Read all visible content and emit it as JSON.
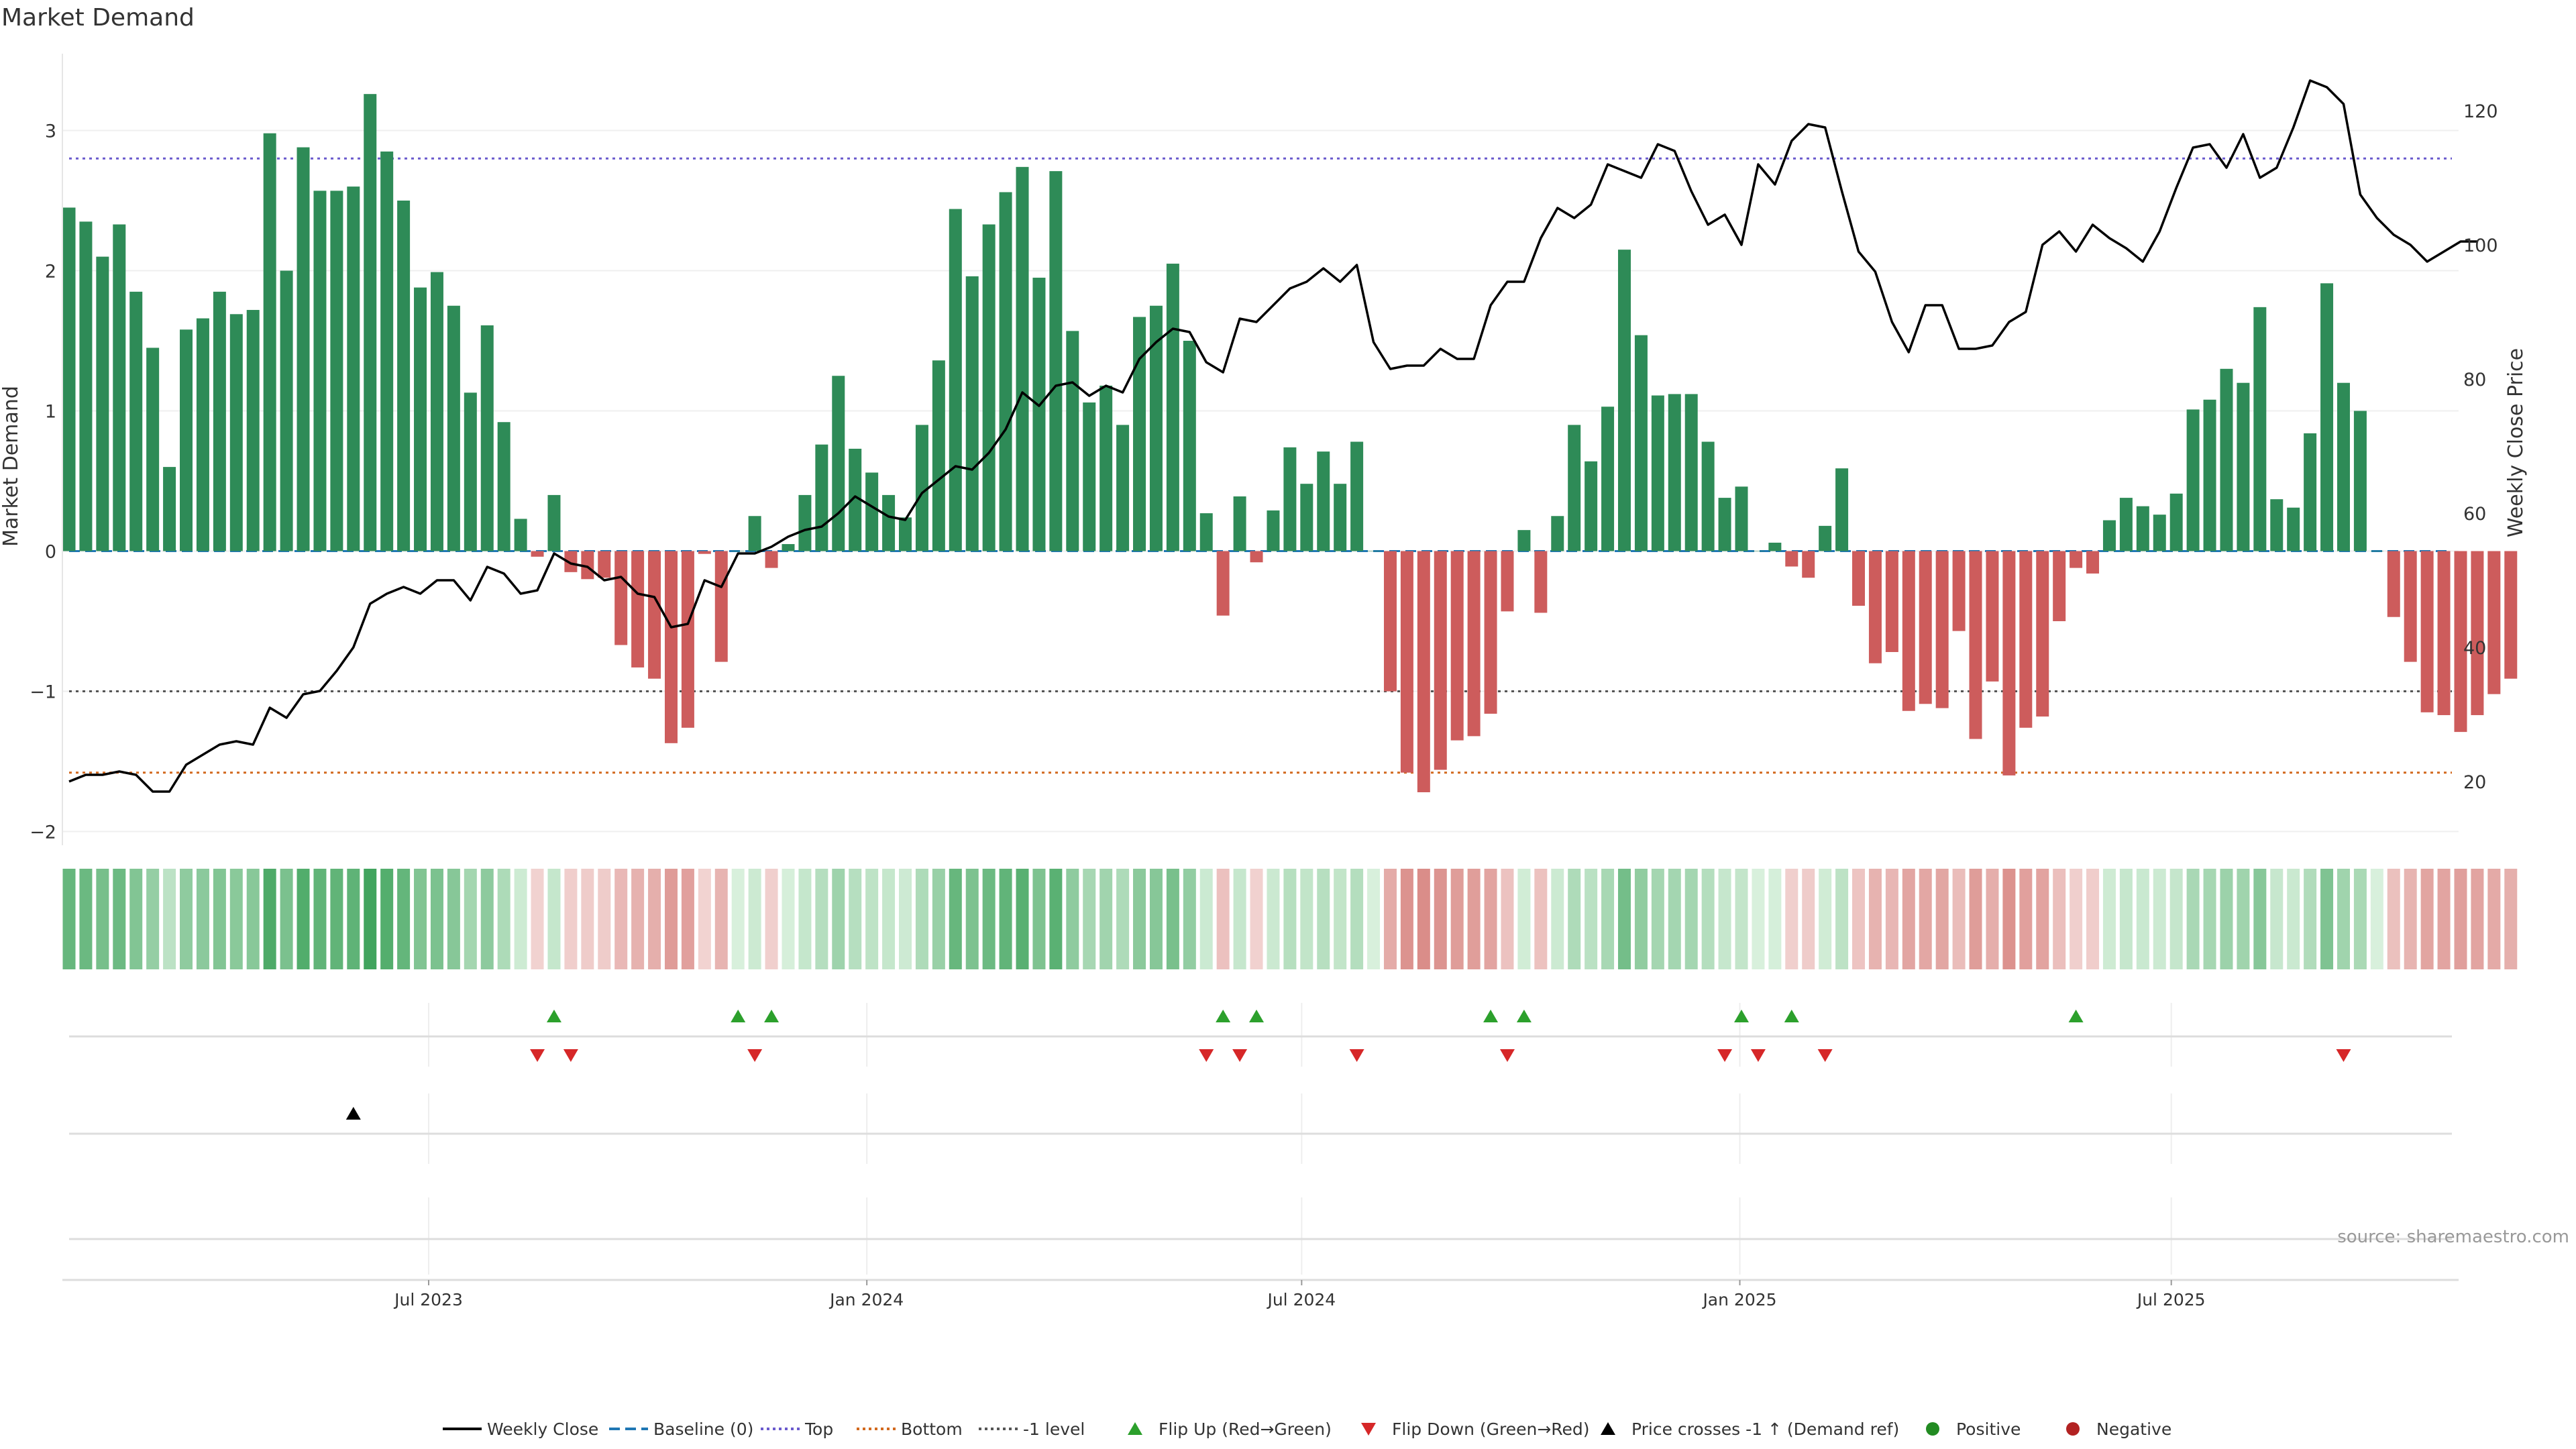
{
  "chart_data": {
    "type": "bar",
    "title": "Market Demand",
    "source": "source: sharemaestro.com",
    "y_left_label": "Market Demand",
    "y_right_label": "Weekly Close Price",
    "y_left_ticks": [
      "−2",
      "−1",
      "0",
      "1",
      "2",
      "3"
    ],
    "y_right_ticks": [
      "20",
      "40",
      "60",
      "80",
      "100",
      "120"
    ],
    "ylim_left": [
      -2,
      3.25
    ],
    "ylim_right": [
      12.5,
      125
    ],
    "x_ticks": [
      {
        "label": "Jul 2023",
        "index": 21.5
      },
      {
        "label": "Jan 2024",
        "index": 47.7
      },
      {
        "label": "Jul 2024",
        "index": 73.7
      },
      {
        "label": "Jan 2025",
        "index": 99.9
      },
      {
        "label": "Jul 2025",
        "index": 125.7
      }
    ],
    "levels": {
      "top": 2.8,
      "bottom": -1.58,
      "minus_one": -1.0,
      "baseline": 0
    },
    "demand": [
      2.45,
      2.35,
      2.1,
      2.33,
      1.85,
      1.45,
      0.6,
      1.58,
      1.66,
      1.85,
      1.69,
      1.72,
      2.98,
      2.0,
      2.88,
      2.57,
      2.57,
      2.6,
      3.26,
      2.85,
      2.5,
      1.88,
      1.99,
      1.75,
      1.13,
      1.61,
      0.92,
      0.23,
      -0.04,
      0.4,
      -0.15,
      -0.2,
      -0.19,
      -0.67,
      -0.83,
      -0.91,
      -1.37,
      -1.26,
      -0.02,
      -0.79,
      0.0,
      0.25,
      -0.12,
      0.05,
      0.4,
      0.76,
      1.25,
      0.73,
      0.56,
      0.4,
      0.24,
      0.9,
      1.36,
      2.44,
      1.96,
      2.33,
      2.56,
      2.74,
      1.95,
      2.71,
      1.57,
      1.06,
      1.18,
      0.9,
      1.67,
      1.75,
      2.05,
      1.5,
      0.27,
      -0.46,
      0.39,
      -0.08,
      0.29,
      0.74,
      0.48,
      0.71,
      0.48,
      0.78,
      0.0,
      -1.0,
      -1.58,
      -1.72,
      -1.56,
      -1.35,
      -1.32,
      -1.16,
      -0.43,
      0.15,
      -0.44,
      0.25,
      0.9,
      0.64,
      1.03,
      2.15,
      1.54,
      1.11,
      1.12,
      1.12,
      0.78,
      0.38,
      0.46,
      0.0,
      0.06,
      -0.11,
      -0.19,
      0.18,
      0.59,
      -0.39,
      -0.8,
      -0.72,
      -1.14,
      -1.09,
      -1.12,
      -0.57,
      -1.34,
      -0.93,
      -1.6,
      -1.26,
      -1.18,
      -0.5,
      -0.12,
      -0.16,
      0.22,
      0.38,
      0.32,
      0.26,
      0.41,
      1.01,
      1.08,
      1.3,
      1.2,
      1.74,
      0.37,
      0.31,
      0.84,
      1.91,
      1.2,
      1.0,
      0.0,
      -0.47,
      -0.79,
      -1.15,
      -1.17,
      -1.29,
      -1.17,
      -1.02,
      -0.91
    ],
    "price": [
      20.0,
      21.0,
      21.0,
      21.5,
      21.0,
      18.5,
      18.5,
      22.5,
      24.0,
      25.5,
      26.0,
      25.5,
      31.0,
      29.5,
      33.0,
      33.5,
      36.5,
      40.0,
      46.5,
      48.0,
      49.0,
      48.0,
      50.0,
      50.0,
      47.0,
      52.0,
      51.0,
      48.0,
      48.5,
      54.0,
      52.5,
      52.0,
      50.0,
      50.5,
      48.0,
      47.5,
      43.0,
      43.5,
      50.0,
      49.0,
      54.0,
      54.0,
      55.0,
      56.5,
      57.5,
      58.0,
      60.0,
      62.5,
      61.0,
      59.5,
      59.0,
      63.0,
      65.0,
      67.0,
      66.5,
      69.0,
      72.5,
      78.0,
      76.0,
      79.0,
      79.5,
      77.5,
      79.0,
      78.0,
      83.0,
      85.5,
      87.5,
      87.0,
      82.5,
      81.0,
      89.0,
      88.5,
      91.0,
      93.5,
      94.5,
      96.5,
      94.5,
      97.0,
      85.5,
      81.5,
      82.0,
      82.0,
      84.5,
      83.0,
      83.0,
      91.0,
      94.5,
      94.5,
      101.0,
      105.5,
      104.0,
      106.0,
      112.0,
      111.0,
      110.0,
      115.0,
      114.0,
      108.0,
      103.0,
      104.5,
      100.0,
      112.0,
      109.0,
      115.5,
      118.0,
      117.5,
      108.0,
      99.0,
      96.0,
      88.5,
      84.0,
      91.0,
      91.0,
      84.5,
      84.5,
      85.0,
      88.5,
      90.0,
      100.0,
      102.0,
      99.0,
      103.0,
      101.0,
      99.5,
      97.5,
      102.0,
      108.5,
      114.5,
      115.0,
      111.5,
      116.5,
      110.0,
      111.5,
      117.5,
      124.5,
      123.5,
      121.0,
      107.5,
      104.0,
      101.5,
      100.0,
      97.5,
      99.0,
      100.5,
      100.5
    ],
    "flip_up_indices": [
      29,
      40,
      42,
      69,
      71,
      85,
      87,
      100,
      103,
      120
    ],
    "flip_down_indices": [
      28,
      30,
      41,
      68,
      70,
      77,
      86,
      99,
      101,
      105,
      136
    ],
    "price_cross_indices": [
      17
    ],
    "legend": [
      {
        "label": "Weekly Close",
        "type": "line"
      },
      {
        "label": "Baseline (0)",
        "type": "dash"
      },
      {
        "label": "Top",
        "type": "dot"
      },
      {
        "label": "Bottom",
        "type": "dot"
      },
      {
        "label": "-1 level",
        "type": "dot"
      },
      {
        "label": "Flip Up (Red→Green)",
        "type": "up"
      },
      {
        "label": "Flip Down (Green→Red)",
        "type": "down"
      },
      {
        "label": "Price crosses -1 ↑ (Demand ref)",
        "type": "cross"
      },
      {
        "label": "Positive",
        "type": "pos"
      },
      {
        "label": "Negative",
        "type": "neg"
      }
    ],
    "colors": {
      "positive": "#2e8b57",
      "negative": "#cd5c5c",
      "price": "#000000",
      "top": "#6a5acd",
      "bottom": "#d2691e",
      "minus_one": "#555555",
      "baseline": "#1f77b4",
      "flip_up": "#2ca02c",
      "flip_down": "#d62728",
      "cross": "#000000",
      "legend_pos": "#228b22",
      "legend_neg": "#b22222"
    }
  }
}
